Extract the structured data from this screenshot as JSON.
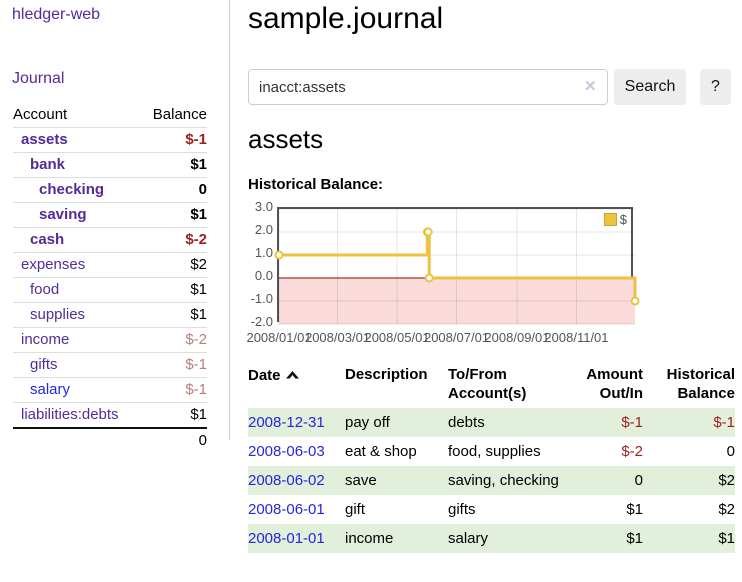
{
  "sidebar": {
    "app_title": "hledger-web",
    "journal_label": "Journal",
    "accounts_table": {
      "headers": {
        "account": "Account",
        "balance": "Balance"
      },
      "rows": [
        {
          "name": "assets",
          "balance": "$-1",
          "depth": 0,
          "bold": true,
          "balance_class": "neg-strong"
        },
        {
          "name": "bank",
          "balance": "$1",
          "depth": 1,
          "bold": true,
          "balance_class": ""
        },
        {
          "name": "checking",
          "balance": "0",
          "depth": 2,
          "bold": true,
          "balance_class": ""
        },
        {
          "name": "saving",
          "balance": "$1",
          "depth": 2,
          "bold": true,
          "balance_class": ""
        },
        {
          "name": "cash",
          "balance": "$-2",
          "depth": 1,
          "bold": true,
          "balance_class": "neg-strong"
        },
        {
          "name": "expenses",
          "balance": "$2",
          "depth": 0,
          "bold": false,
          "balance_class": ""
        },
        {
          "name": "food",
          "balance": "$1",
          "depth": 1,
          "bold": false,
          "balance_class": ""
        },
        {
          "name": "supplies",
          "balance": "$1",
          "depth": 1,
          "bold": false,
          "balance_class": ""
        },
        {
          "name": "income",
          "balance": "$-2",
          "depth": 0,
          "bold": false,
          "balance_class": "neg-soft"
        },
        {
          "name": "gifts",
          "balance": "$-1",
          "depth": 1,
          "bold": false,
          "balance_class": "neg-soft"
        },
        {
          "name": "salary",
          "balance": "$-1",
          "depth": 1,
          "bold": false,
          "balance_class": "neg-soft",
          "link_blue": true
        },
        {
          "name": "liabilities:debts",
          "balance": "$1",
          "depth": 0,
          "bold": false,
          "balance_class": ""
        }
      ],
      "total": "0"
    }
  },
  "header": {
    "title": "sample.journal"
  },
  "search": {
    "value": "inacct:assets",
    "button_label": "Search",
    "help_label": "?",
    "icons": {
      "clear": "✕"
    }
  },
  "account_page": {
    "title": "assets",
    "chart_label": "Historical Balance:"
  },
  "chart_data": {
    "type": "line",
    "step": true,
    "title": "Historical Balance",
    "xmin": "2008-01-01",
    "xmax": "2008-12-31",
    "ylim": [
      -2,
      3
    ],
    "grid": true,
    "legend_position": "top-right",
    "legend": {
      "label": "$",
      "swatch_color": "#edc240"
    },
    "series": [
      {
        "name": "$",
        "color": "#edc240",
        "points": [
          [
            "2008-01-01",
            1
          ],
          [
            "2008-06-01",
            2
          ],
          [
            "2008-06-02",
            2
          ],
          [
            "2008-06-03",
            0
          ],
          [
            "2008-12-31",
            -1
          ]
        ]
      }
    ],
    "x_ticks": [
      {
        "date": "2008-01-01",
        "label": "2008/01/01"
      },
      {
        "date": "2008-03-01",
        "label": "2008/03/01"
      },
      {
        "date": "2008-05-01",
        "label": "2008/05/01"
      },
      {
        "date": "2008-07-01",
        "label": "2008/07/01"
      },
      {
        "date": "2008-09-01",
        "label": "2008/09/01"
      },
      {
        "date": "2008-11-01",
        "label": "2008/11/01"
      }
    ],
    "y_ticks": [
      {
        "value": 3,
        "label": "3.0"
      },
      {
        "value": 2,
        "label": "2.0"
      },
      {
        "value": 1,
        "label": "1.0"
      },
      {
        "value": 0,
        "label": "0.0"
      },
      {
        "value": -1,
        "label": "-1.0"
      },
      {
        "value": -2,
        "label": "-2.0"
      }
    ],
    "negative_region_color": "#fbdada",
    "zero_line_color": "#8b0000",
    "grid_line_color": "rgba(0,0,0,0.10)"
  },
  "register_table": {
    "headers": {
      "date": "Date",
      "description": "Description",
      "accounts": "To/From Account(s)",
      "amount": "Amount Out/In",
      "balance": "Historical Balance"
    },
    "sort_icon": "chevron-up",
    "rows": [
      {
        "date": "2008-12-31",
        "description": "pay off",
        "accounts": "debts",
        "amount": "$-1",
        "amount_negative": true,
        "balance": "$-1",
        "balance_negative": true
      },
      {
        "date": "2008-06-03",
        "description": "eat & shop",
        "accounts": "food, supplies",
        "amount": "$-2",
        "amount_negative": true,
        "balance": "0",
        "balance_negative": false
      },
      {
        "date": "2008-06-02",
        "description": "save",
        "accounts": "saving, checking",
        "amount": "0",
        "amount_negative": false,
        "balance": "$2",
        "balance_negative": false
      },
      {
        "date": "2008-06-01",
        "description": "gift",
        "accounts": "gifts",
        "amount": "$1",
        "amount_negative": false,
        "balance": "$2",
        "balance_negative": false
      },
      {
        "date": "2008-01-01",
        "description": "income",
        "accounts": "salary",
        "amount": "$1",
        "amount_negative": false,
        "balance": "$1",
        "balance_negative": false
      }
    ]
  }
}
